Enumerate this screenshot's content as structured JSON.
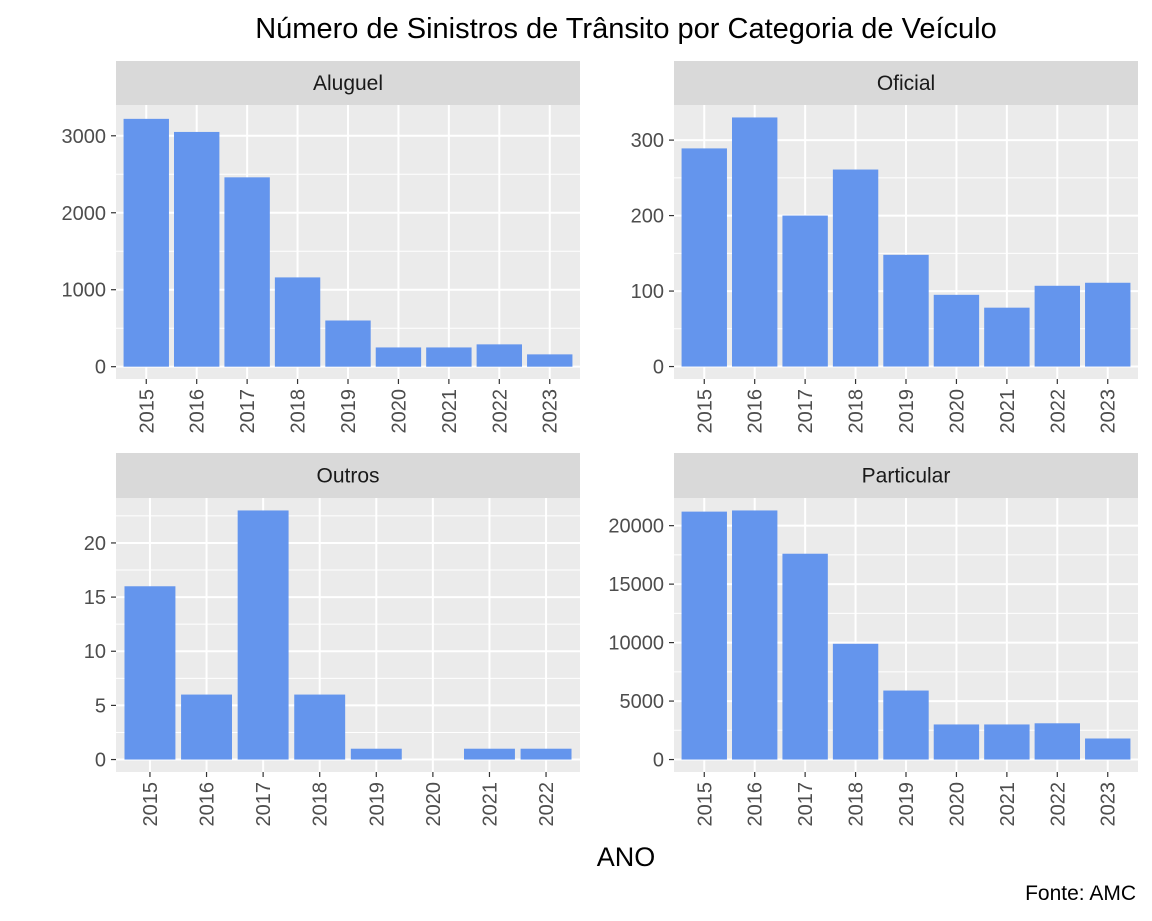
{
  "title": "Número de Sinistros de Trânsito por Categoria de Veículo",
  "xlabel": "ANO",
  "caption": "Fonte: AMC",
  "colors": {
    "bar": "#6495ED",
    "panel_bg": "#EBEBEB",
    "strip_bg": "#D9D9D9",
    "grid": "#FFFFFF",
    "text": "#000000",
    "tick_text": "#4D4D4D"
  },
  "chart_data": [
    {
      "type": "bar",
      "title": "Aluguel",
      "categories": [
        "2015",
        "2016",
        "2017",
        "2018",
        "2019",
        "2020",
        "2021",
        "2022",
        "2023"
      ],
      "values": [
        3220,
        3050,
        2460,
        1160,
        600,
        250,
        250,
        290,
        160
      ],
      "yticks": [
        0,
        1000,
        2000,
        3000
      ],
      "ylim": [
        -160,
        3400
      ],
      "grid": true
    },
    {
      "type": "bar",
      "title": "Oficial",
      "categories": [
        "2015",
        "2016",
        "2017",
        "2018",
        "2019",
        "2020",
        "2021",
        "2022",
        "2023"
      ],
      "values": [
        289,
        330,
        200,
        261,
        148,
        95,
        78,
        107,
        111
      ],
      "yticks": [
        0,
        100,
        200,
        300
      ],
      "ylim": [
        -16.5,
        346.5
      ],
      "grid": true
    },
    {
      "type": "bar",
      "title": "Outros",
      "categories": [
        "2015",
        "2016",
        "2017",
        "2018",
        "2019",
        "2020",
        "2021",
        "2022"
      ],
      "values": [
        16,
        6,
        23,
        6,
        1,
        0,
        1,
        1
      ],
      "yticks": [
        0,
        5,
        10,
        15,
        20
      ],
      "ylim": [
        -1.15,
        24.15
      ],
      "grid": true
    },
    {
      "type": "bar",
      "title": "Particular",
      "categories": [
        "2015",
        "2016",
        "2017",
        "2018",
        "2019",
        "2020",
        "2021",
        "2022",
        "2023"
      ],
      "values": [
        21200,
        21300,
        17600,
        9900,
        5900,
        3000,
        3000,
        3100,
        1800
      ],
      "yticks": [
        0,
        5000,
        10000,
        15000,
        20000
      ],
      "ylim": [
        -1065,
        22365
      ],
      "grid": true
    }
  ]
}
